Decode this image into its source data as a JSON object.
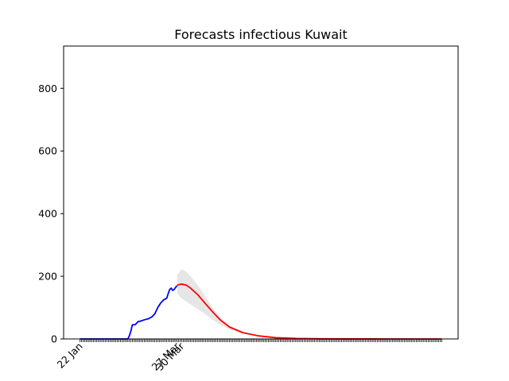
{
  "chart_data": {
    "type": "line",
    "title": "Forecasts infectious Kuwait",
    "xlabel": "",
    "ylabel": "",
    "x_start_date": "2020-01-22",
    "x_end_date": "2020-09-20",
    "ylim": [
      0,
      935
    ],
    "yticks": [
      0,
      200,
      400,
      600,
      800
    ],
    "xtick_labels": [
      {
        "date": "2020-01-22",
        "label": "22 Jan"
      },
      {
        "date": "2020-03-27",
        "label": "27 Mar"
      },
      {
        "date": "2020-03-30",
        "label": "30 Mar"
      }
    ],
    "grid": false,
    "series": [
      {
        "color": "#0000ff",
        "x": [
          "2020-01-22",
          "2020-02-01",
          "2020-02-15",
          "2020-02-23",
          "2020-02-24",
          "2020-02-25",
          "2020-02-26",
          "2020-02-28",
          "2020-03-01",
          "2020-03-02",
          "2020-03-05",
          "2020-03-08",
          "2020-03-10",
          "2020-03-11",
          "2020-03-12",
          "2020-03-14",
          "2020-03-16",
          "2020-03-18",
          "2020-03-20",
          "2020-03-21",
          "2020-03-22",
          "2020-03-23",
          "2020-03-24",
          "2020-03-25",
          "2020-03-26",
          "2020-03-27"
        ],
        "y": [
          0,
          0,
          0,
          0,
          10,
          25,
          45,
          46,
          56,
          56,
          61,
          65,
          70,
          75,
          80,
          100,
          115,
          125,
          130,
          145,
          158,
          162,
          155,
          158,
          165,
          170
        ]
      },
      {
        "color": "#ff0000",
        "x": [
          "2020-03-27",
          "2020-03-30",
          "2020-04-02",
          "2020-04-05",
          "2020-04-10",
          "2020-04-15",
          "2020-04-20",
          "2020-04-25",
          "2020-05-01",
          "2020-05-10",
          "2020-05-20",
          "2020-06-01",
          "2020-06-15",
          "2020-07-01",
          "2020-07-15",
          "2020-08-01",
          "2020-08-15",
          "2020-09-01",
          "2020-09-20"
        ],
        "y": [
          172,
          175,
          172,
          162,
          140,
          112,
          85,
          60,
          38,
          20,
          10,
          4,
          1.5,
          0.5,
          0.2,
          0.1,
          0.05,
          0,
          0
        ]
      }
    ],
    "band": {
      "color": "#e6e6e6",
      "x": [
        "2020-03-27",
        "2020-03-30",
        "2020-04-02",
        "2020-04-05",
        "2020-04-10",
        "2020-04-15",
        "2020-04-20",
        "2020-04-25",
        "2020-05-01",
        "2020-05-10",
        "2020-05-20",
        "2020-06-01",
        "2020-06-15",
        "2020-07-01"
      ],
      "upper": [
        205,
        222,
        215,
        200,
        170,
        135,
        98,
        68,
        42,
        22,
        11,
        5,
        2,
        0.5
      ],
      "lower": [
        145,
        130,
        120,
        110,
        95,
        78,
        60,
        45,
        30,
        17,
        9,
        3.5,
        1,
        0.2
      ]
    }
  }
}
